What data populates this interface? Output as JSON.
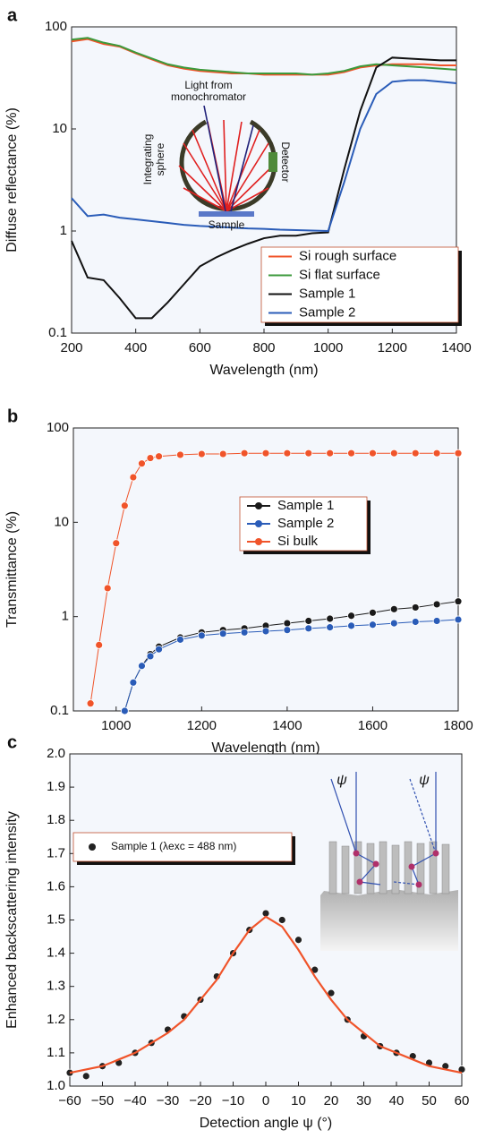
{
  "chart_data": [
    {
      "panel": "a",
      "type": "line",
      "xlabel": "Wavelength (nm)",
      "ylabel": "Diffuse reflectance (%)",
      "xlim": [
        200,
        1400
      ],
      "xticks": [
        200,
        400,
        600,
        800,
        1000,
        1200,
        1400
      ],
      "ylim": [
        0.1,
        100
      ],
      "yticks": [
        0.1,
        1,
        10,
        100
      ],
      "yscale": "log",
      "x": [
        200,
        250,
        300,
        350,
        400,
        450,
        500,
        550,
        600,
        650,
        700,
        750,
        800,
        850,
        900,
        950,
        1000,
        1050,
        1100,
        1150,
        1200,
        1250,
        1300,
        1350,
        1400
      ],
      "series": [
        {
          "name": "Si rough surface",
          "color": "#f0542a",
          "values": [
            72,
            76,
            68,
            64,
            55,
            48,
            42,
            39,
            37,
            36,
            35,
            35,
            34,
            34,
            34,
            34,
            34,
            36,
            40,
            42,
            43,
            43,
            43,
            42,
            42
          ]
        },
        {
          "name": "Si flat surface",
          "color": "#3c9a3c",
          "values": [
            75,
            78,
            70,
            65,
            56,
            49,
            43,
            40,
            38,
            37,
            36,
            35,
            35,
            35,
            35,
            34,
            35,
            37,
            41,
            43,
            42,
            41,
            40,
            39,
            38
          ]
        },
        {
          "name": "Sample 1",
          "color": "#111111",
          "values": [
            0.8,
            0.35,
            0.33,
            0.22,
            0.14,
            0.14,
            0.2,
            0.3,
            0.45,
            0.55,
            0.65,
            0.75,
            0.85,
            0.9,
            0.9,
            0.95,
            0.97,
            4,
            15,
            40,
            50,
            49,
            48,
            47,
            47
          ]
        },
        {
          "name": "Sample 2",
          "color": "#2a5cb8",
          "values": [
            2.1,
            1.4,
            1.45,
            1.35,
            1.3,
            1.25,
            1.2,
            1.15,
            1.12,
            1.1,
            1.08,
            1.06,
            1.05,
            1.03,
            1.02,
            1.01,
            1.0,
            3,
            10,
            22,
            29,
            30,
            30,
            29,
            28
          ]
        }
      ],
      "annotations": [
        "Light from",
        "monochromator",
        "Integrating",
        "sphere",
        "Detector",
        "Sample"
      ]
    },
    {
      "panel": "b",
      "type": "line",
      "markers": true,
      "xlabel": "Wavelength (nm)",
      "ylabel": "Transmittance (%)",
      "xlim": [
        900,
        1800
      ],
      "xticks": [
        1000,
        1200,
        1400,
        1600,
        1800
      ],
      "ylim": [
        0.1,
        100
      ],
      "yticks": [
        0.1,
        1,
        10,
        100
      ],
      "yscale": "log",
      "x": [
        940,
        960,
        980,
        1000,
        1020,
        1040,
        1060,
        1080,
        1100,
        1150,
        1200,
        1250,
        1300,
        1350,
        1400,
        1450,
        1500,
        1550,
        1600,
        1650,
        1700,
        1750,
        1800
      ],
      "series": [
        {
          "name": "Sample 1",
          "color": "#1a1a1a",
          "values": [
            null,
            null,
            null,
            null,
            0.1,
            0.2,
            0.3,
            0.4,
            0.48,
            0.6,
            0.68,
            0.72,
            0.75,
            0.8,
            0.85,
            0.9,
            0.95,
            1.02,
            1.1,
            1.2,
            1.25,
            1.35,
            1.45
          ]
        },
        {
          "name": "Sample 2",
          "color": "#2a5cb8",
          "values": [
            null,
            null,
            null,
            null,
            0.1,
            0.2,
            0.3,
            0.38,
            0.45,
            0.57,
            0.63,
            0.66,
            0.68,
            0.7,
            0.72,
            0.75,
            0.77,
            0.8,
            0.82,
            0.85,
            0.88,
            0.9,
            0.93
          ]
        },
        {
          "name": "Si bulk",
          "color": "#f0542a",
          "values": [
            0.12,
            0.5,
            2,
            6,
            15,
            30,
            42,
            48,
            50,
            52,
            53,
            53,
            54,
            54,
            54,
            54,
            54,
            54,
            54,
            54,
            54,
            54,
            54
          ]
        }
      ]
    },
    {
      "panel": "c",
      "type": "scatter",
      "xlabel": "Detection angle ψ (°)",
      "ylabel": "Enhanced backscattering intensity",
      "xlim": [
        -60,
        60
      ],
      "xticks": [
        {
          "value": -60,
          "label": "−60"
        },
        {
          "value": -50,
          "label": "−50"
        },
        {
          "value": -40,
          "label": "−40"
        },
        {
          "value": -30,
          "label": "−30"
        },
        {
          "value": -20,
          "label": "−20"
        },
        {
          "value": -10,
          "label": "−10"
        },
        0,
        10,
        20,
        30,
        40,
        50,
        60
      ],
      "ylim": [
        1,
        2
      ],
      "yticks": [
        {
          "value": 1,
          "label": "1.0"
        },
        1.1,
        1.2,
        1.3,
        1.4,
        1.5,
        1.6,
        1.7,
        1.8,
        1.9,
        {
          "value": 2,
          "label": "2.0"
        }
      ],
      "x": [
        -60,
        -55,
        -50,
        -45,
        -40,
        -35,
        -30,
        -25,
        -20,
        -15,
        -10,
        -5,
        0,
        5,
        10,
        15,
        20,
        25,
        30,
        35,
        40,
        45,
        50,
        55,
        60
      ],
      "series": [
        {
          "name": "Sample 1 (λexc = 488 nm)",
          "color": "#222222",
          "values": [
            1.04,
            1.03,
            1.06,
            1.07,
            1.1,
            1.13,
            1.17,
            1.21,
            1.26,
            1.33,
            1.4,
            1.47,
            1.52,
            1.5,
            1.44,
            1.35,
            1.28,
            1.2,
            1.15,
            1.12,
            1.1,
            1.09,
            1.07,
            1.06,
            1.05
          ]
        }
      ],
      "fit": {
        "color": "#f0542a",
        "values": [
          1.04,
          1.05,
          1.06,
          1.08,
          1.1,
          1.13,
          1.16,
          1.2,
          1.26,
          1.32,
          1.4,
          1.47,
          1.51,
          1.48,
          1.41,
          1.33,
          1.26,
          1.2,
          1.16,
          1.12,
          1.1,
          1.08,
          1.06,
          1.05,
          1.04
        ]
      },
      "annotations": [
        "ψ",
        "ψ"
      ]
    }
  ]
}
